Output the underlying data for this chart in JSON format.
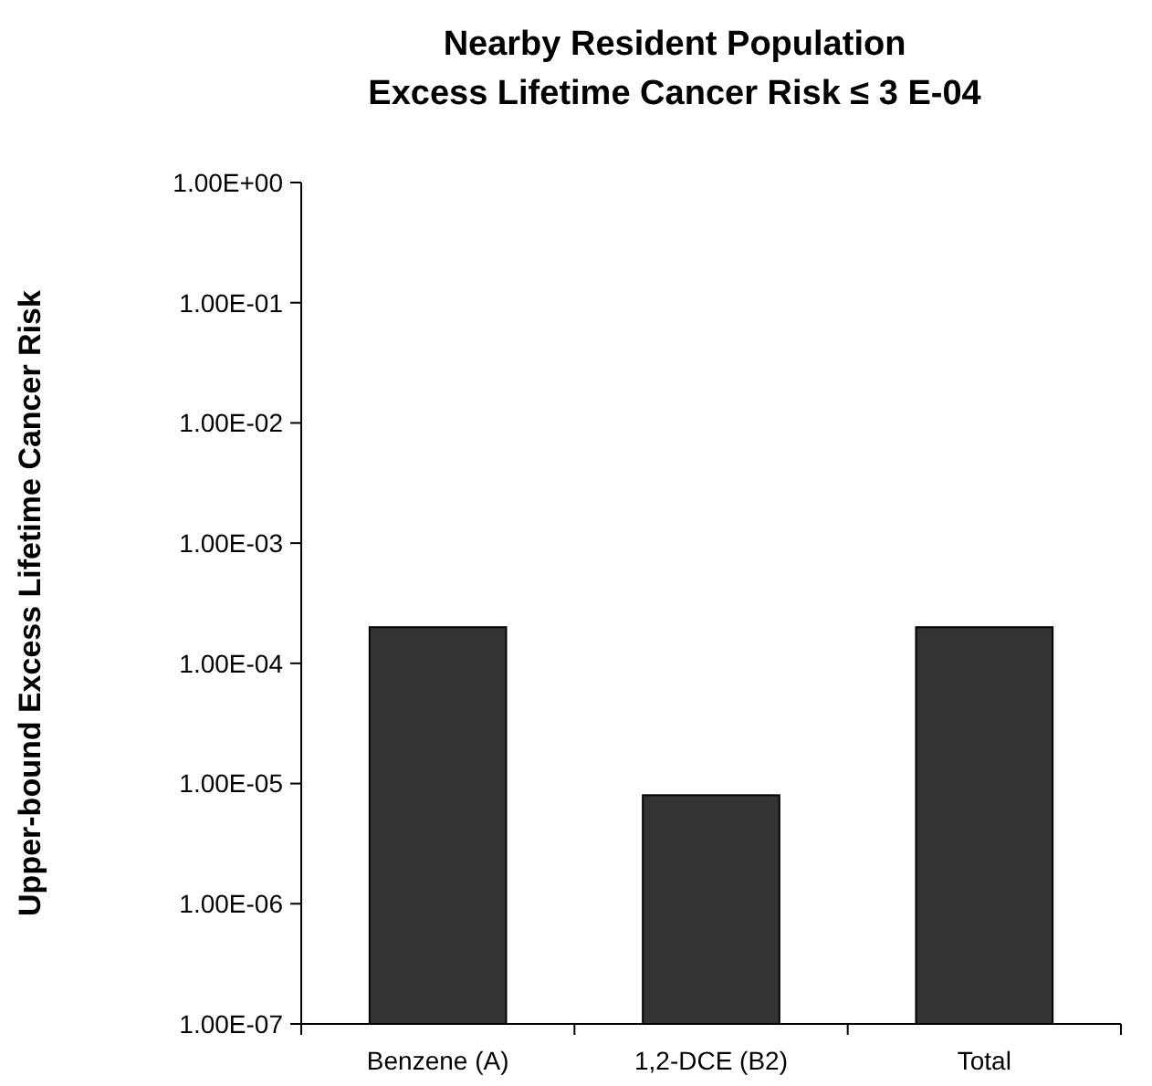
{
  "chart_data": {
    "type": "bar",
    "title": "Nearby Resident Population\nExcess Lifetime Cancer Risk ≤ 3 E-04",
    "ylabel": "Upper-bound Excess Lifetime Cancer Risk",
    "categories": [
      "Benzene (A)",
      "1,2-DCE (B2)",
      "Total"
    ],
    "values": [
      0.0002,
      8e-06,
      0.0002
    ],
    "color": "#333333",
    "log": true,
    "grid": false,
    "ylim": [
      1e-07,
      1
    ],
    "yticks": [
      {
        "value": 1e-07,
        "label": "1.00E-07"
      },
      {
        "value": 1e-06,
        "label": "1.00E-06"
      },
      {
        "value": 1e-05,
        "label": "1.00E-05"
      },
      {
        "value": 0.0001,
        "label": "1.00E-04"
      },
      {
        "value": 0.001,
        "label": "1.00E-03"
      },
      {
        "value": 0.01,
        "label": "1.00E-02"
      },
      {
        "value": 0.1,
        "label": "1.00E-01"
      },
      {
        "value": 1,
        "label": "1.00E+00"
      }
    ]
  }
}
